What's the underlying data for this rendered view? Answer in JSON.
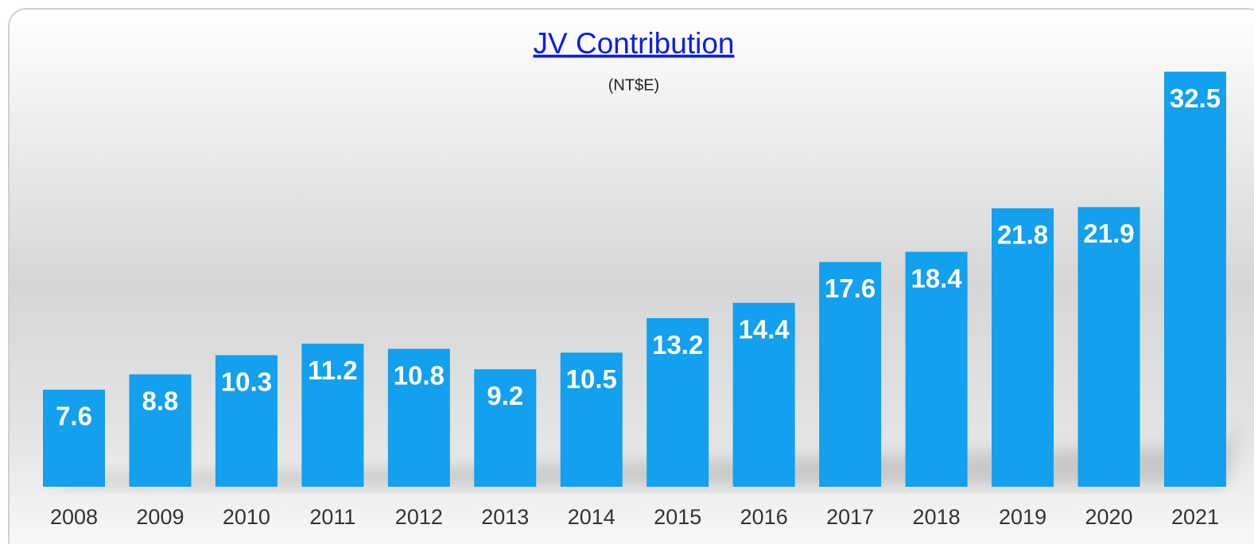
{
  "chart_data": {
    "type": "bar",
    "title": "JV Contribution",
    "subtitle": "(NT$E)",
    "categories": [
      "2008",
      "2009",
      "2010",
      "2011",
      "2012",
      "2013",
      "2014",
      "2015",
      "2016",
      "2017",
      "2018",
      "2019",
      "2020",
      "2021"
    ],
    "values": [
      7.6,
      8.8,
      10.3,
      11.2,
      10.8,
      9.2,
      10.5,
      13.2,
      14.4,
      17.6,
      18.4,
      21.8,
      21.9,
      32.5
    ],
    "color": "#12a0ef",
    "ylim": [
      0,
      35
    ]
  }
}
